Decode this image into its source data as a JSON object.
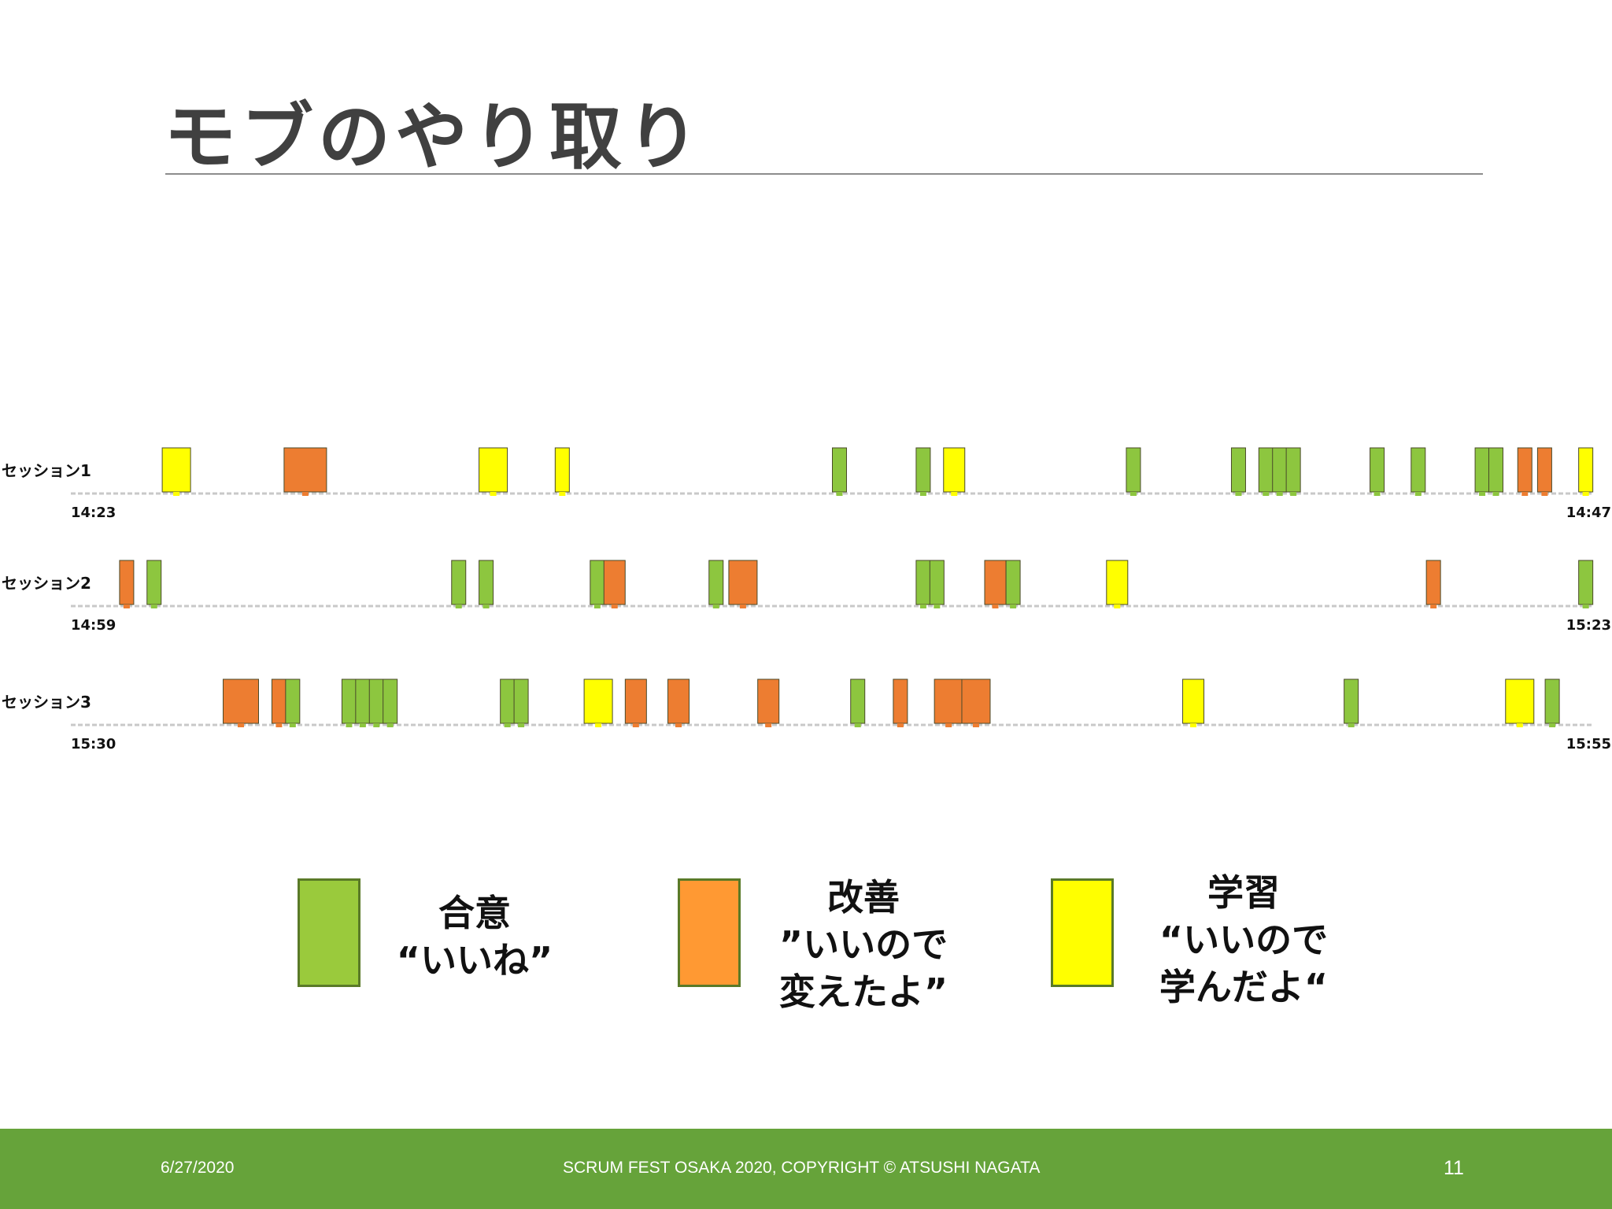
{
  "title": "モブのやり取り",
  "colors": {
    "agree": "#8dc63f",
    "improve": "#ed7d31",
    "learn": "#ffff00",
    "footer": "#66a33a"
  },
  "chart_data": {
    "type": "timeline",
    "title": "モブのやり取り",
    "sessions": [
      {
        "label": "セッション1",
        "start": "14:23",
        "end": "14:47",
        "events": [
          {
            "t": 0.06,
            "span": 1,
            "type": "learn"
          },
          {
            "t": 0.14,
            "span": 1.5,
            "type": "improve"
          },
          {
            "t": 0.268,
            "span": 1,
            "type": "learn"
          },
          {
            "t": 0.318,
            "span": 0.5,
            "type": "learn"
          },
          {
            "t": 0.5,
            "span": 0.5,
            "type": "agree"
          },
          {
            "t": 0.555,
            "span": 0.5,
            "type": "agree"
          },
          {
            "t": 0.573,
            "span": 0.75,
            "type": "learn"
          },
          {
            "t": 0.693,
            "span": 0.5,
            "type": "agree"
          },
          {
            "t": 0.762,
            "span": 0.5,
            "type": "agree"
          },
          {
            "t": 0.78,
            "span": 0.5,
            "type": "agree"
          },
          {
            "t": 0.789,
            "span": 0.5,
            "type": "agree"
          },
          {
            "t": 0.798,
            "span": 0.5,
            "type": "agree"
          },
          {
            "t": 0.853,
            "span": 0.5,
            "type": "agree"
          },
          {
            "t": 0.88,
            "span": 0.5,
            "type": "agree"
          },
          {
            "t": 0.922,
            "span": 0.5,
            "type": "agree"
          },
          {
            "t": 0.931,
            "span": 0.5,
            "type": "agree"
          },
          {
            "t": 0.95,
            "span": 0.5,
            "type": "improve"
          },
          {
            "t": 0.963,
            "span": 0.5,
            "type": "improve"
          },
          {
            "t": 0.99,
            "span": 0.5,
            "type": "learn"
          }
        ]
      },
      {
        "label": "セッション2",
        "start": "14:59",
        "end": "15:23",
        "events": [
          {
            "t": 0.032,
            "span": 0.5,
            "type": "improve"
          },
          {
            "t": 0.05,
            "span": 0.5,
            "type": "agree"
          },
          {
            "t": 0.25,
            "span": 0.5,
            "type": "agree"
          },
          {
            "t": 0.268,
            "span": 0.5,
            "type": "agree"
          },
          {
            "t": 0.341,
            "span": 0.5,
            "type": "agree"
          },
          {
            "t": 0.35,
            "span": 0.75,
            "type": "improve"
          },
          {
            "t": 0.419,
            "span": 0.5,
            "type": "agree"
          },
          {
            "t": 0.432,
            "span": 1,
            "type": "improve"
          },
          {
            "t": 0.555,
            "span": 0.5,
            "type": "agree"
          },
          {
            "t": 0.564,
            "span": 0.5,
            "type": "agree"
          },
          {
            "t": 0.6,
            "span": 0.75,
            "type": "improve"
          },
          {
            "t": 0.614,
            "span": 0.5,
            "type": "agree"
          },
          {
            "t": 0.68,
            "span": 0.75,
            "type": "learn"
          },
          {
            "t": 0.89,
            "span": 0.5,
            "type": "improve"
          },
          {
            "t": 0.99,
            "span": 0.5,
            "type": "agree"
          }
        ]
      },
      {
        "label": "セッション3",
        "start": "15:30",
        "end": "15:55",
        "events": [
          {
            "t": 0.1,
            "span": 1.25,
            "type": "improve"
          },
          {
            "t": 0.132,
            "span": 0.5,
            "type": "improve"
          },
          {
            "t": 0.141,
            "span": 0.5,
            "type": "agree"
          },
          {
            "t": 0.178,
            "span": 0.5,
            "type": "agree"
          },
          {
            "t": 0.187,
            "span": 0.5,
            "type": "agree"
          },
          {
            "t": 0.196,
            "span": 0.5,
            "type": "agree"
          },
          {
            "t": 0.205,
            "span": 0.5,
            "type": "agree"
          },
          {
            "t": 0.282,
            "span": 0.5,
            "type": "agree"
          },
          {
            "t": 0.291,
            "span": 0.5,
            "type": "agree"
          },
          {
            "t": 0.337,
            "span": 1,
            "type": "learn"
          },
          {
            "t": 0.364,
            "span": 0.75,
            "type": "improve"
          },
          {
            "t": 0.392,
            "span": 0.75,
            "type": "improve"
          },
          {
            "t": 0.451,
            "span": 0.75,
            "type": "improve"
          },
          {
            "t": 0.512,
            "span": 0.5,
            "type": "agree"
          },
          {
            "t": 0.54,
            "span": 0.5,
            "type": "improve"
          },
          {
            "t": 0.567,
            "span": 1,
            "type": "improve"
          },
          {
            "t": 0.585,
            "span": 1,
            "type": "improve"
          },
          {
            "t": 0.73,
            "span": 0.75,
            "type": "learn"
          },
          {
            "t": 0.836,
            "span": 0.5,
            "type": "agree"
          },
          {
            "t": 0.942,
            "span": 1,
            "type": "learn"
          },
          {
            "t": 0.968,
            "span": 0.5,
            "type": "agree"
          }
        ]
      }
    ],
    "legend": [
      {
        "type": "agree",
        "lines": [
          "合意",
          "“いいね”"
        ]
      },
      {
        "type": "improve",
        "lines": [
          "改善",
          "”いいので",
          "変えたよ”"
        ]
      },
      {
        "type": "learn",
        "lines": [
          "学習",
          "“いいので",
          "学んだよ“"
        ]
      }
    ]
  },
  "footer": {
    "date": "6/27/2020",
    "copyright": "SCRUM FEST OSAKA 2020, COPYRIGHT © ATSUSHI NAGATA",
    "page": "11"
  }
}
